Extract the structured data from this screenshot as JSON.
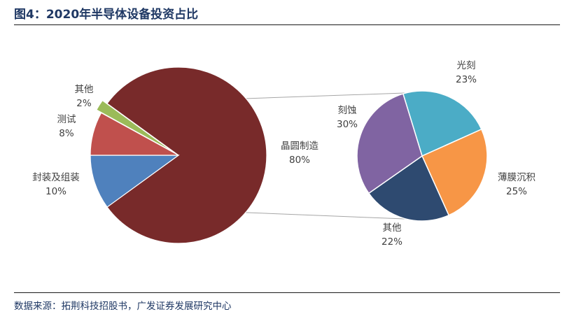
{
  "title": "图4：2020年半导体设备投资占比",
  "source": "数据来源：拓荆科技招股书，广发证券发展研究中心",
  "chart_data": [
    {
      "type": "pie",
      "categories": [
        "晶圆制造",
        "封装及组装",
        "测试",
        "其他"
      ],
      "values": [
        80,
        10,
        8,
        2
      ],
      "labels": [
        "80%",
        "10%",
        "8%",
        "2%"
      ],
      "colors": [
        "#782a2a",
        "#4f81bd",
        "#c0504d",
        "#9bbb59"
      ]
    },
    {
      "type": "pie",
      "categories": [
        "光刻",
        "薄膜沉积",
        "其他",
        "刻蚀"
      ],
      "values": [
        23,
        25,
        22,
        30
      ],
      "labels": [
        "23%",
        "25%",
        "22%",
        "30%"
      ],
      "colors": [
        "#4bacc6",
        "#f79646",
        "#2e4a70",
        "#8064a2"
      ]
    }
  ]
}
